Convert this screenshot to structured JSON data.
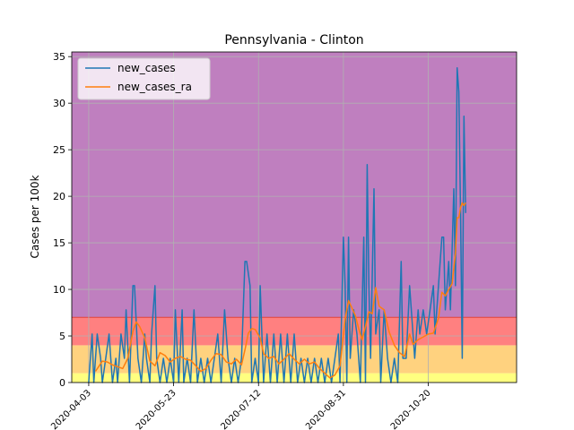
{
  "chart_data": {
    "type": "line",
    "title": "Pennsylvania - Clinton",
    "xlabel": "",
    "ylabel": "Cases per 100k",
    "ylim": [
      0,
      35.5
    ],
    "xlim": [
      "2020-03-24",
      "2020-12-11"
    ],
    "yticks": [
      0,
      5,
      10,
      15,
      20,
      25,
      30,
      35
    ],
    "xticks": [
      "2020-04-03",
      "2020-05-23",
      "2020-07-12",
      "2020-08-31",
      "2020-10-20"
    ],
    "grid": true,
    "legend_position": "upper-left",
    "bands": [
      {
        "from": 0,
        "to": 1,
        "color": "#ffff80"
      },
      {
        "from": 1,
        "to": 4,
        "color": "#ffd27f"
      },
      {
        "from": 4,
        "to": 7,
        "color": "#ff8080"
      },
      {
        "from": 7,
        "to": 35.5,
        "color": "#bf7fbf"
      }
    ],
    "band_edge_color": "#e0443a",
    "series": [
      {
        "name": "new_cases",
        "color": "#1f77b4",
        "points": [
          [
            "2020-04-03",
            0
          ],
          [
            "2020-04-05",
            5.2
          ],
          [
            "2020-04-06",
            0
          ],
          [
            "2020-04-08",
            5.2
          ],
          [
            "2020-04-10",
            2.6
          ],
          [
            "2020-04-11",
            0
          ],
          [
            "2020-04-13",
            2.6
          ],
          [
            "2020-04-15",
            5.2
          ],
          [
            "2020-04-17",
            0
          ],
          [
            "2020-04-19",
            2.6
          ],
          [
            "2020-04-20",
            0
          ],
          [
            "2020-04-22",
            5.2
          ],
          [
            "2020-04-24",
            2.6
          ],
          [
            "2020-04-25",
            7.8
          ],
          [
            "2020-04-27",
            0
          ],
          [
            "2020-04-29",
            10.4
          ],
          [
            "2020-04-30",
            10.4
          ],
          [
            "2020-05-02",
            2.6
          ],
          [
            "2020-05-04",
            0
          ],
          [
            "2020-05-06",
            5.2
          ],
          [
            "2020-05-07",
            2.6
          ],
          [
            "2020-05-09",
            0
          ],
          [
            "2020-05-10",
            5.2
          ],
          [
            "2020-05-12",
            10.4
          ],
          [
            "2020-05-13",
            2.6
          ],
          [
            "2020-05-15",
            0
          ],
          [
            "2020-05-17",
            2.6
          ],
          [
            "2020-05-19",
            0
          ],
          [
            "2020-05-21",
            2.6
          ],
          [
            "2020-05-23",
            0
          ],
          [
            "2020-05-24",
            7.8
          ],
          [
            "2020-05-26",
            0
          ],
          [
            "2020-05-28",
            7.8
          ],
          [
            "2020-05-29",
            0
          ],
          [
            "2020-05-31",
            2.6
          ],
          [
            "2020-06-02",
            0
          ],
          [
            "2020-06-04",
            7.8
          ],
          [
            "2020-06-06",
            0
          ],
          [
            "2020-06-08",
            2.6
          ],
          [
            "2020-06-10",
            0
          ],
          [
            "2020-06-12",
            2.6
          ],
          [
            "2020-06-14",
            0
          ],
          [
            "2020-06-16",
            2.6
          ],
          [
            "2020-06-18",
            5.2
          ],
          [
            "2020-06-20",
            0
          ],
          [
            "2020-06-22",
            7.8
          ],
          [
            "2020-06-24",
            2.6
          ],
          [
            "2020-06-26",
            0
          ],
          [
            "2020-06-28",
            2.6
          ],
          [
            "2020-06-30",
            0
          ],
          [
            "2020-07-02",
            2.6
          ],
          [
            "2020-07-04",
            13
          ],
          [
            "2020-07-05",
            13
          ],
          [
            "2020-07-07",
            10.4
          ],
          [
            "2020-07-08",
            0
          ],
          [
            "2020-07-10",
            2.6
          ],
          [
            "2020-07-12",
            0
          ],
          [
            "2020-07-13",
            10.4
          ],
          [
            "2020-07-15",
            0
          ],
          [
            "2020-07-17",
            5.2
          ],
          [
            "2020-07-19",
            0
          ],
          [
            "2020-07-21",
            5.2
          ],
          [
            "2020-07-23",
            0
          ],
          [
            "2020-07-25",
            5.2
          ],
          [
            "2020-07-27",
            0
          ],
          [
            "2020-07-29",
            5.2
          ],
          [
            "2020-07-31",
            0
          ],
          [
            "2020-08-02",
            5.2
          ],
          [
            "2020-08-04",
            0
          ],
          [
            "2020-08-06",
            2.6
          ],
          [
            "2020-08-08",
            0
          ],
          [
            "2020-08-10",
            2.6
          ],
          [
            "2020-08-12",
            0
          ],
          [
            "2020-08-14",
            2.6
          ],
          [
            "2020-08-16",
            0
          ],
          [
            "2020-08-18",
            2.6
          ],
          [
            "2020-08-20",
            0
          ],
          [
            "2020-08-22",
            2.6
          ],
          [
            "2020-08-24",
            0
          ],
          [
            "2020-08-26",
            2.6
          ],
          [
            "2020-08-28",
            5.2
          ],
          [
            "2020-08-29",
            0
          ],
          [
            "2020-08-31",
            15.6
          ],
          [
            "2020-09-01",
            10.4
          ],
          [
            "2020-09-02",
            0
          ],
          [
            "2020-09-03",
            15.6
          ],
          [
            "2020-09-04",
            2.6
          ],
          [
            "2020-09-06",
            7.8
          ],
          [
            "2020-09-08",
            5.2
          ],
          [
            "2020-09-10",
            0
          ],
          [
            "2020-09-12",
            15.6
          ],
          [
            "2020-09-13",
            0
          ],
          [
            "2020-09-14",
            23.4
          ],
          [
            "2020-09-15",
            10.4
          ],
          [
            "2020-09-16",
            2.6
          ],
          [
            "2020-09-18",
            20.8
          ],
          [
            "2020-09-19",
            5.2
          ],
          [
            "2020-09-21",
            7.8
          ],
          [
            "2020-09-22",
            0
          ],
          [
            "2020-09-24",
            7.8
          ],
          [
            "2020-09-26",
            2.6
          ],
          [
            "2020-09-28",
            0
          ],
          [
            "2020-09-30",
            2.6
          ],
          [
            "2020-10-02",
            0
          ],
          [
            "2020-10-04",
            13
          ],
          [
            "2020-10-05",
            2.6
          ],
          [
            "2020-10-07",
            2.6
          ],
          [
            "2020-10-09",
            10.4
          ],
          [
            "2020-10-10",
            7.8
          ],
          [
            "2020-10-12",
            2.6
          ],
          [
            "2020-10-14",
            7.8
          ],
          [
            "2020-10-15",
            5.2
          ],
          [
            "2020-10-17",
            7.8
          ],
          [
            "2020-10-19",
            5.2
          ],
          [
            "2020-10-21",
            7.8
          ],
          [
            "2020-10-23",
            10.4
          ],
          [
            "2020-10-24",
            5.2
          ],
          [
            "2020-10-26",
            10.4
          ],
          [
            "2020-10-28",
            15.6
          ],
          [
            "2020-10-29",
            15.6
          ],
          [
            "2020-10-30",
            7.8
          ],
          [
            "2020-11-01",
            13
          ],
          [
            "2020-11-02",
            7.8
          ],
          [
            "2020-11-04",
            20.8
          ],
          [
            "2020-11-05",
            10.4
          ],
          [
            "2020-11-06",
            33.8
          ],
          [
            "2020-11-07",
            31.2
          ],
          [
            "2020-11-08",
            18.2
          ],
          [
            "2020-11-09",
            2.6
          ],
          [
            "2020-11-10",
            28.6
          ],
          [
            "2020-11-11",
            18.2
          ]
        ]
      },
      {
        "name": "new_cases_ra",
        "color": "#ff7f0e",
        "points": [
          [
            "2020-04-07",
            1.2
          ],
          [
            "2020-04-11",
            2.3
          ],
          [
            "2020-04-14",
            2.2
          ],
          [
            "2020-04-17",
            1.9
          ],
          [
            "2020-04-20",
            1.7
          ],
          [
            "2020-04-23",
            1.5
          ],
          [
            "2020-04-26",
            2.6
          ],
          [
            "2020-04-29",
            5.5
          ],
          [
            "2020-05-01",
            6.5
          ],
          [
            "2020-05-03",
            6.0
          ],
          [
            "2020-05-06",
            4.8
          ],
          [
            "2020-05-09",
            2.3
          ],
          [
            "2020-05-12",
            1.8
          ],
          [
            "2020-05-15",
            3.2
          ],
          [
            "2020-05-18",
            2.9
          ],
          [
            "2020-05-21",
            2.2
          ],
          [
            "2020-05-24",
            2.6
          ],
          [
            "2020-05-27",
            2.8
          ],
          [
            "2020-05-30",
            2.5
          ],
          [
            "2020-06-02",
            2.4
          ],
          [
            "2020-06-05",
            1.8
          ],
          [
            "2020-06-08",
            1.2
          ],
          [
            "2020-06-11",
            1.5
          ],
          [
            "2020-06-14",
            2.4
          ],
          [
            "2020-06-17",
            3.1
          ],
          [
            "2020-06-20",
            3.0
          ],
          [
            "2020-06-23",
            2.2
          ],
          [
            "2020-06-26",
            2.0
          ],
          [
            "2020-06-29",
            2.5
          ],
          [
            "2020-07-02",
            1.9
          ],
          [
            "2020-07-04",
            3.5
          ],
          [
            "2020-07-06",
            5.3
          ],
          [
            "2020-07-08",
            5.8
          ],
          [
            "2020-07-10",
            5.7
          ],
          [
            "2020-07-13",
            4.8
          ],
          [
            "2020-07-15",
            3.1
          ],
          [
            "2020-07-18",
            2.6
          ],
          [
            "2020-07-21",
            2.8
          ],
          [
            "2020-07-24",
            2.0
          ],
          [
            "2020-07-27",
            2.5
          ],
          [
            "2020-07-30",
            3.1
          ],
          [
            "2020-08-02",
            2.5
          ],
          [
            "2020-08-05",
            2.0
          ],
          [
            "2020-08-08",
            2.5
          ],
          [
            "2020-08-11",
            2.0
          ],
          [
            "2020-08-14",
            2.2
          ],
          [
            "2020-08-17",
            1.5
          ],
          [
            "2020-08-20",
            1.0
          ],
          [
            "2020-08-23",
            0.5
          ],
          [
            "2020-08-26",
            0.8
          ],
          [
            "2020-08-29",
            1.8
          ],
          [
            "2020-09-01",
            6.8
          ],
          [
            "2020-09-03",
            8.8
          ],
          [
            "2020-09-05",
            8.0
          ],
          [
            "2020-09-07",
            7.2
          ],
          [
            "2020-09-09",
            5.8
          ],
          [
            "2020-09-11",
            4.6
          ],
          [
            "2020-09-13",
            6.0
          ],
          [
            "2020-09-15",
            7.6
          ],
          [
            "2020-09-17",
            7.4
          ],
          [
            "2020-09-19",
            10.2
          ],
          [
            "2020-09-21",
            8.2
          ],
          [
            "2020-09-24",
            7.8
          ],
          [
            "2020-09-27",
            5.4
          ],
          [
            "2020-09-30",
            4.0
          ],
          [
            "2020-10-03",
            3.2
          ],
          [
            "2020-10-06",
            2.8
          ],
          [
            "2020-10-09",
            5.2
          ],
          [
            "2020-10-11",
            4.1
          ],
          [
            "2020-10-14",
            4.6
          ],
          [
            "2020-10-17",
            4.9
          ],
          [
            "2020-10-20",
            5.2
          ],
          [
            "2020-10-23",
            5.3
          ],
          [
            "2020-10-26",
            6.9
          ],
          [
            "2020-10-28",
            9.7
          ],
          [
            "2020-10-30",
            9.3
          ],
          [
            "2020-11-01",
            10.0
          ],
          [
            "2020-11-03",
            10.6
          ],
          [
            "2020-11-05",
            13.9
          ],
          [
            "2020-11-06",
            17.7
          ],
          [
            "2020-11-07",
            17.7
          ],
          [
            "2020-11-08",
            18.8
          ],
          [
            "2020-11-09",
            19.3
          ],
          [
            "2020-11-10",
            19.0
          ],
          [
            "2020-11-11",
            19.3
          ]
        ]
      }
    ]
  }
}
